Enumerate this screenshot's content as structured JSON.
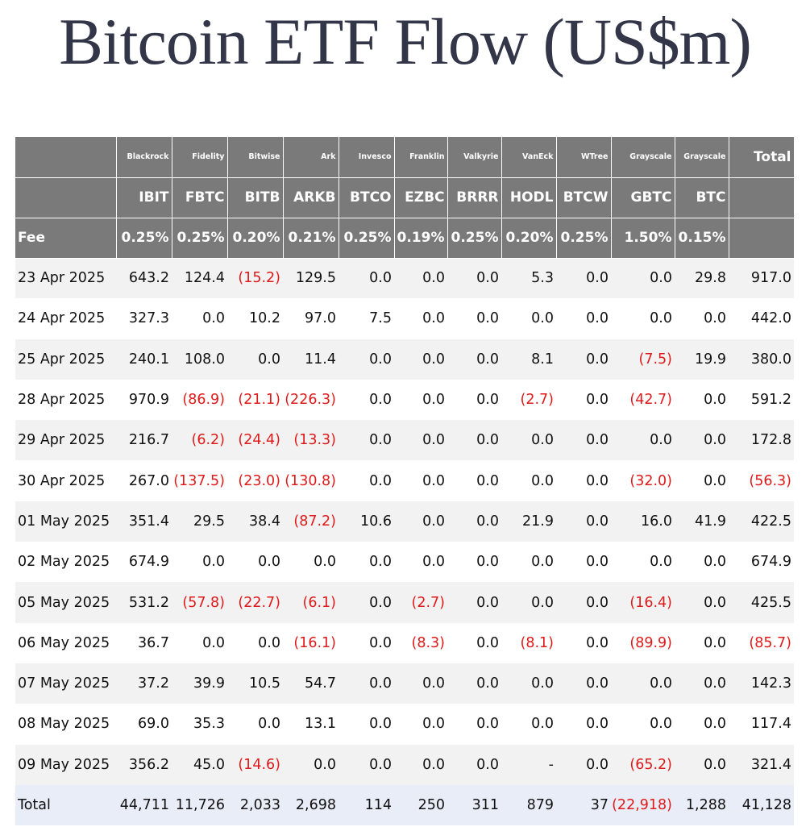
{
  "title": "Bitcoin ETF Flow (US$m)",
  "header": {
    "issuers": [
      "",
      "Blackrock",
      "Fidelity",
      "Bitwise",
      "Ark",
      "Invesco",
      "Franklin",
      "Valkyrie",
      "VanEck",
      "WTree",
      "Grayscale",
      "Grayscale",
      "Total"
    ],
    "tickers": [
      "",
      "IBIT",
      "FBTC",
      "BITB",
      "ARKB",
      "BTCO",
      "EZBC",
      "BRRR",
      "HODL",
      "BTCW",
      "GBTC",
      "BTC",
      ""
    ],
    "fees": [
      "Fee",
      "0.25%",
      "0.25%",
      "0.20%",
      "0.21%",
      "0.25%",
      "0.19%",
      "0.25%",
      "0.20%",
      "0.25%",
      "1.50%",
      "0.15%",
      ""
    ]
  },
  "rows": [
    [
      "23 Apr 2025",
      "643.2",
      "124.4",
      "(15.2)",
      "129.5",
      "0.0",
      "0.0",
      "0.0",
      "5.3",
      "0.0",
      "0.0",
      "29.8",
      "917.0"
    ],
    [
      "24 Apr 2025",
      "327.3",
      "0.0",
      "10.2",
      "97.0",
      "7.5",
      "0.0",
      "0.0",
      "0.0",
      "0.0",
      "0.0",
      "0.0",
      "442.0"
    ],
    [
      "25 Apr 2025",
      "240.1",
      "108.0",
      "0.0",
      "11.4",
      "0.0",
      "0.0",
      "0.0",
      "8.1",
      "0.0",
      "(7.5)",
      "19.9",
      "380.0"
    ],
    [
      "28 Apr 2025",
      "970.9",
      "(86.9)",
      "(21.1)",
      "(226.3)",
      "0.0",
      "0.0",
      "0.0",
      "(2.7)",
      "0.0",
      "(42.7)",
      "0.0",
      "591.2"
    ],
    [
      "29 Apr 2025",
      "216.7",
      "(6.2)",
      "(24.4)",
      "(13.3)",
      "0.0",
      "0.0",
      "0.0",
      "0.0",
      "0.0",
      "0.0",
      "0.0",
      "172.8"
    ],
    [
      "30 Apr 2025",
      "267.0",
      "(137.5)",
      "(23.0)",
      "(130.8)",
      "0.0",
      "0.0",
      "0.0",
      "0.0",
      "0.0",
      "(32.0)",
      "0.0",
      "(56.3)"
    ],
    [
      "01 May 2025",
      "351.4",
      "29.5",
      "38.4",
      "(87.2)",
      "10.6",
      "0.0",
      "0.0",
      "21.9",
      "0.0",
      "16.0",
      "41.9",
      "422.5"
    ],
    [
      "02 May 2025",
      "674.9",
      "0.0",
      "0.0",
      "0.0",
      "0.0",
      "0.0",
      "0.0",
      "0.0",
      "0.0",
      "0.0",
      "0.0",
      "674.9"
    ],
    [
      "05 May 2025",
      "531.2",
      "(57.8)",
      "(22.7)",
      "(6.1)",
      "0.0",
      "(2.7)",
      "0.0",
      "0.0",
      "0.0",
      "(16.4)",
      "0.0",
      "425.5"
    ],
    [
      "06 May 2025",
      "36.7",
      "0.0",
      "0.0",
      "(16.1)",
      "0.0",
      "(8.3)",
      "0.0",
      "(8.1)",
      "0.0",
      "(89.9)",
      "0.0",
      "(85.7)"
    ],
    [
      "07 May 2025",
      "37.2",
      "39.9",
      "10.5",
      "54.7",
      "0.0",
      "0.0",
      "0.0",
      "0.0",
      "0.0",
      "0.0",
      "0.0",
      "142.3"
    ],
    [
      "08 May 2025",
      "69.0",
      "35.3",
      "0.0",
      "13.1",
      "0.0",
      "0.0",
      "0.0",
      "0.0",
      "0.0",
      "0.0",
      "0.0",
      "117.4"
    ],
    [
      "09 May 2025",
      "356.2",
      "45.0",
      "(14.6)",
      "0.0",
      "0.0",
      "0.0",
      "0.0",
      "-",
      "0.0",
      "(65.2)",
      "0.0",
      "321.4"
    ]
  ],
  "totals": [
    "Total",
    "44,711",
    "11,726",
    "2,033",
    "2,698",
    "114",
    "250",
    "311",
    "879",
    "37",
    "(22,918)",
    "1,288",
    "41,128"
  ],
  "colors": {
    "header_bg": "#7a7a7a",
    "negative": "#e01a1a",
    "title": "#333548",
    "row_alt": "#f2f2f2",
    "total_row": "#e9edf8"
  }
}
